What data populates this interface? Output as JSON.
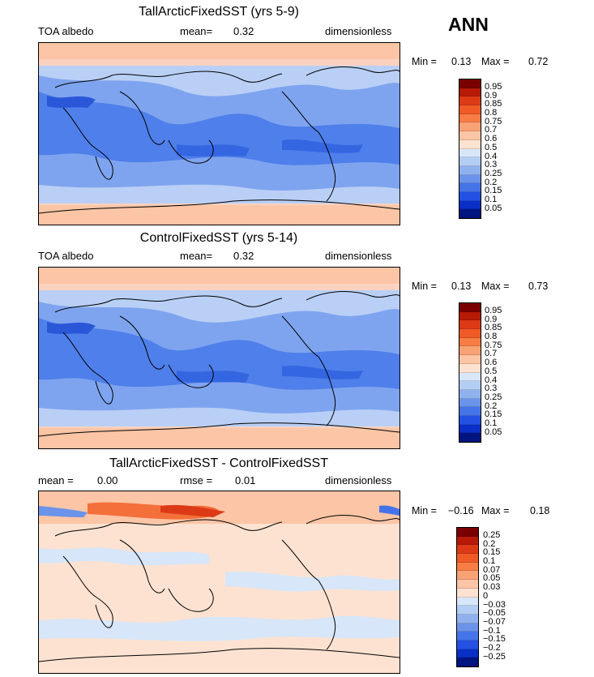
{
  "season": "ANN",
  "panels": [
    {
      "title": "TallArcticFixedSST (yrs 5-9)",
      "left_label": "TOA albedo",
      "mid_label": "mean=",
      "mid_value": "0.32",
      "units": "dimensionless",
      "min_label": "Min =",
      "min_value": "0.13",
      "max_label": "Max =",
      "max_value": "0.72",
      "colorbar_labels": [
        "0.95",
        "0.9",
        "0.85",
        "0.8",
        "0.75",
        "0.7",
        "0.6",
        "0.5",
        "0.4",
        "0.3",
        "0.25",
        "0.2",
        "0.15",
        "0.1",
        "0.05"
      ],
      "colorbar_colors": [
        "#7a0000",
        "#b81a08",
        "#dc3a16",
        "#ef5a26",
        "#f77d45",
        "#f9a276",
        "#fbc5a6",
        "#fde2d1",
        "#d7e6f8",
        "#b3cdf3",
        "#8fb1ee",
        "#6b93ea",
        "#4574e8",
        "#2450e3",
        "#0a2fc6",
        "#00157f"
      ]
    },
    {
      "title": "ControlFixedSST (yrs 5-14)",
      "left_label": "TOA albedo",
      "mid_label": "mean=",
      "mid_value": "0.32",
      "units": "dimensionless",
      "min_label": "Min =",
      "min_value": "0.13",
      "max_label": "Max =",
      "max_value": "0.73",
      "colorbar_labels": [
        "0.95",
        "0.9",
        "0.85",
        "0.8",
        "0.75",
        "0.7",
        "0.6",
        "0.5",
        "0.4",
        "0.3",
        "0.25",
        "0.2",
        "0.15",
        "0.1",
        "0.05"
      ],
      "colorbar_colors": [
        "#7a0000",
        "#b81a08",
        "#dc3a16",
        "#ef5a26",
        "#f77d45",
        "#f9a276",
        "#fbc5a6",
        "#fde2d1",
        "#d7e6f8",
        "#b3cdf3",
        "#8fb1ee",
        "#6b93ea",
        "#4574e8",
        "#2450e3",
        "#0a2fc6",
        "#00157f"
      ]
    },
    {
      "title": "TallArcticFixedSST - ControlFixedSST",
      "left_label": "mean =",
      "left_value": "0.00",
      "mid_label": "rmse =",
      "mid_value": "0.01",
      "units": "dimensionless",
      "min_label": "Min =",
      "min_value": "−0.16",
      "max_label": "Max =",
      "max_value": "0.18",
      "colorbar_labels": [
        "0.25",
        "0.2",
        "0.15",
        "0.1",
        "0.07",
        "0.05",
        "0.03",
        "0",
        "−0.03",
        "−0.05",
        "−0.07",
        "−0.1",
        "−0.15",
        "−0.2",
        "−0.25"
      ],
      "colorbar_colors": [
        "#7a0000",
        "#b81a08",
        "#dc3a16",
        "#ef5a26",
        "#f77d45",
        "#f9a276",
        "#fbc5a6",
        "#fde2d1",
        "#d7e6f8",
        "#b3cdf3",
        "#8fb1ee",
        "#6b93ea",
        "#4574e8",
        "#2450e3",
        "#0a2fc6",
        "#00157f"
      ]
    }
  ]
}
